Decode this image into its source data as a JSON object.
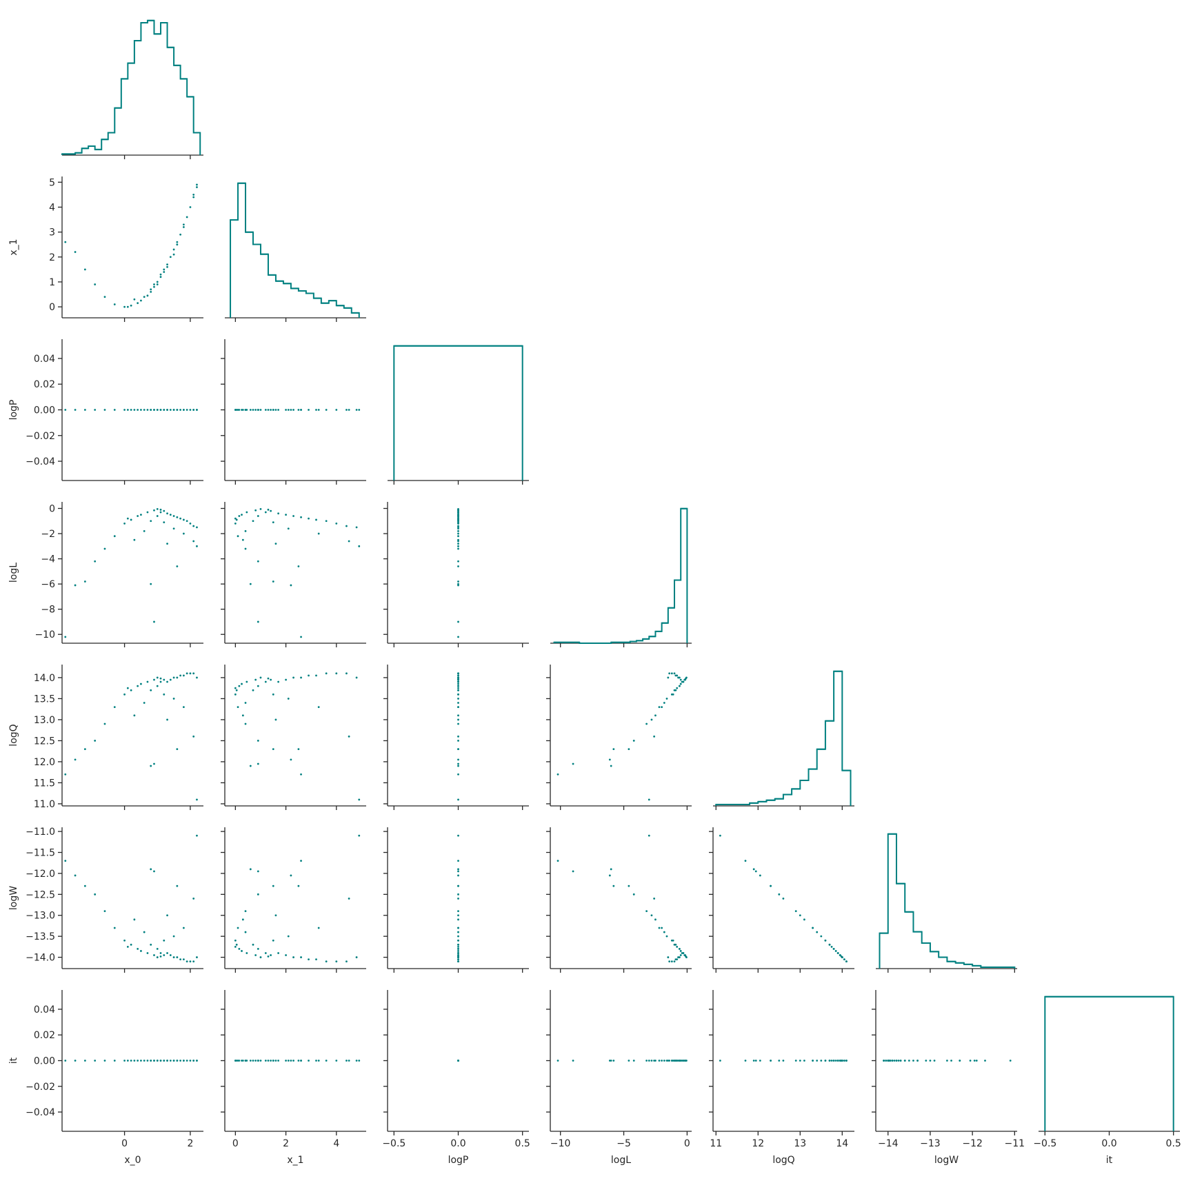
{
  "chart_data": {
    "type": "pairplot",
    "color": "#008080",
    "variables": [
      {
        "name": "x_0",
        "xlim": [
          -1.9,
          2.4
        ],
        "xticks": [
          0,
          2
        ],
        "values": [
          -1.8,
          -1.5,
          -1.2,
          -0.9,
          -0.6,
          -0.3,
          0.0,
          0.2,
          0.3,
          0.5,
          0.6,
          0.7,
          0.8,
          0.9,
          1.0,
          1.0,
          1.1,
          1.2,
          1.2,
          1.3,
          1.4,
          1.5,
          1.5,
          1.6,
          1.7,
          1.8,
          1.8,
          1.9,
          2.0,
          2.1,
          2.2,
          2.2,
          0.8,
          0.9,
          0.4,
          1.3,
          0.1,
          1.6,
          2.1,
          1.1
        ],
        "hist": {
          "bins": [
            -1.9,
            -1.7,
            -1.5,
            -1.3,
            -1.1,
            -0.9,
            -0.7,
            -0.5,
            -0.3,
            -0.1,
            0.1,
            0.3,
            0.5,
            0.7,
            0.9,
            1.1,
            1.3,
            1.5,
            1.7,
            1.9,
            2.1,
            2.3
          ],
          "counts": [
            1,
            1,
            2,
            6,
            8,
            5,
            14,
            20,
            42,
            68,
            82,
            102,
            118,
            120,
            108,
            118,
            96,
            80,
            68,
            52,
            20
          ]
        }
      },
      {
        "name": "x_1",
        "xlim": [
          -0.42,
          5.18
        ],
        "xticks": [
          0,
          2,
          4
        ],
        "ylim": [
          -0.44,
          5.23
        ],
        "yticks": [
          0,
          1,
          2,
          3,
          4,
          5
        ],
        "values": [
          2.6,
          2.2,
          1.5,
          0.9,
          0.4,
          0.1,
          0.0,
          0.05,
          0.3,
          0.25,
          0.4,
          0.45,
          0.7,
          0.8,
          1.0,
          0.9,
          1.2,
          1.4,
          1.5,
          1.7,
          2.0,
          2.3,
          2.1,
          2.6,
          2.9,
          3.2,
          3.3,
          3.6,
          4.0,
          4.4,
          4.8,
          4.9,
          0.6,
          0.9,
          0.15,
          1.6,
          0.0,
          2.5,
          4.5,
          1.3
        ],
        "hist": {
          "bins": [
            -0.2,
            0.1,
            0.4,
            0.7,
            1.0,
            1.3,
            1.6,
            1.9,
            2.2,
            2.5,
            2.8,
            3.1,
            3.4,
            3.7,
            4.0,
            4.3,
            4.6,
            4.9
          ],
          "counts": [
            80,
            110,
            70,
            60,
            52,
            35,
            30,
            28,
            24,
            22,
            20,
            16,
            12,
            14,
            10,
            8,
            4
          ]
        }
      },
      {
        "name": "logP",
        "xlim": [
          -0.55,
          0.55
        ],
        "xticks": [
          {
            "value": -0.5,
            "label": "−0.5"
          },
          {
            "value": 0,
            "label": "0.0"
          },
          0.5
        ],
        "ylim": [
          -0.055,
          0.055
        ],
        "yticks": [
          {
            "value": -0.04,
            "label": "−0.04"
          },
          {
            "value": -0.02,
            "label": "−0.02"
          },
          {
            "value": 0,
            "label": "0.00"
          },
          0.02,
          0.04
        ],
        "values": [
          0,
          0,
          0,
          0,
          0,
          0,
          0,
          0,
          0,
          0,
          0,
          0,
          0,
          0,
          0,
          0,
          0,
          0,
          0,
          0,
          0,
          0,
          0,
          0,
          0,
          0,
          0,
          0,
          0,
          0,
          0,
          0,
          0,
          0,
          0,
          0,
          0,
          0,
          0,
          0
        ],
        "hist": {
          "bins": [
            -0.5,
            0.5
          ],
          "counts": [
            40
          ]
        }
      },
      {
        "name": "logL",
        "xlim": [
          -10.8,
          0.36
        ],
        "xticks": [
          {
            "value": -10,
            "label": "−10"
          },
          {
            "value": -5,
            "label": "−5"
          },
          0
        ],
        "ylim": [
          -10.7,
          0.52
        ],
        "yticks": [
          {
            "value": -10,
            "label": "−10"
          },
          {
            "value": -8,
            "label": "−8"
          },
          {
            "value": -6,
            "label": "−6"
          },
          {
            "value": -4,
            "label": "−4"
          },
          {
            "value": -2,
            "label": "−2"
          },
          0
        ],
        "values": [
          -10.2,
          -6.1,
          -5.8,
          -4.2,
          -3.2,
          -2.2,
          -1.2,
          -0.9,
          -2.5,
          -0.5,
          -1.8,
          -0.3,
          -1.0,
          -0.15,
          -0.05,
          -0.6,
          -0.3,
          -0.2,
          -1.1,
          -0.4,
          -0.5,
          -0.6,
          -1.6,
          -0.7,
          -0.8,
          -0.9,
          -2.0,
          -1.0,
          -1.2,
          -1.4,
          -1.5,
          -3.0,
          -6.0,
          -9.0,
          -0.6,
          -2.8,
          -0.8,
          -4.6,
          -2.6,
          -0.1
        ],
        "hist": {
          "bins": [
            -10.5,
            -10,
            -9.5,
            -9,
            -8.5,
            -8,
            -7.5,
            -7,
            -6.5,
            -6,
            -5.5,
            -5,
            -4.5,
            -4,
            -3.5,
            -3,
            -2.5,
            -2,
            -1.5,
            -1,
            -0.5,
            0
          ],
          "counts": [
            1,
            1,
            1,
            1,
            0,
            0,
            0,
            0,
            0,
            1,
            1,
            1,
            2,
            3,
            5,
            8,
            14,
            24,
            42,
            75,
            160
          ]
        }
      },
      {
        "name": "logQ",
        "xlim": [
          10.93,
          14.29
        ],
        "xticks": [
          11,
          12,
          13,
          14
        ],
        "ylim": [
          10.95,
          14.31
        ],
        "yticks": [
          {
            "value": 11,
            "label": "11.0"
          },
          11.5,
          {
            "value": 12,
            "label": "12.0"
          },
          12.5,
          {
            "value": 13,
            "label": "13.0"
          },
          13.5,
          {
            "value": 14,
            "label": "14.0"
          }
        ],
        "values": [
          11.7,
          12.05,
          12.3,
          12.5,
          12.9,
          13.3,
          13.6,
          13.7,
          13.1,
          13.85,
          13.4,
          13.9,
          13.7,
          13.95,
          14.0,
          13.8,
          13.9,
          13.95,
          13.6,
          13.9,
          13.95,
          14.0,
          13.5,
          14.0,
          14.05,
          14.05,
          13.3,
          14.1,
          14.1,
          14.1,
          14.0,
          11.1,
          11.9,
          11.95,
          13.8,
          13.0,
          13.75,
          12.3,
          12.6,
          13.98
        ],
        "hist": {
          "bins": [
            11.0,
            11.2,
            11.4,
            11.6,
            11.8,
            12.0,
            12.2,
            12.4,
            12.6,
            12.8,
            13.0,
            13.2,
            13.4,
            13.6,
            13.8,
            14.0,
            14.2
          ],
          "counts": [
            1,
            1,
            1,
            1,
            2,
            3,
            4,
            5,
            8,
            12,
            18,
            26,
            40,
            60,
            95,
            25
          ]
        }
      },
      {
        "name": "logW",
        "xlim": [
          -14.29,
          -10.94
        ],
        "xticks": [
          {
            "value": -14,
            "label": "−14"
          },
          {
            "value": -13,
            "label": "−13"
          },
          {
            "value": -12,
            "label": "−12"
          },
          {
            "value": -11,
            "label": "−11"
          }
        ],
        "ylim": [
          -14.27,
          -10.9
        ],
        "yticks": [
          {
            "value": -14,
            "label": "−14.0"
          },
          {
            "value": -13.5,
            "label": "−13.5"
          },
          {
            "value": -13,
            "label": "−13.0"
          },
          {
            "value": -12.5,
            "label": "−12.5"
          },
          {
            "value": -12,
            "label": "−12.0"
          },
          {
            "value": -11.5,
            "label": "−11.5"
          },
          {
            "value": -11,
            "label": "−11.0"
          }
        ],
        "values": [
          -11.7,
          -12.05,
          -12.3,
          -12.5,
          -12.9,
          -13.3,
          -13.6,
          -13.7,
          -13.1,
          -13.85,
          -13.4,
          -13.9,
          -13.7,
          -13.95,
          -14.0,
          -13.8,
          -13.9,
          -13.95,
          -13.6,
          -13.9,
          -13.95,
          -14.0,
          -13.5,
          -14.0,
          -14.05,
          -14.05,
          -13.3,
          -14.1,
          -14.1,
          -14.1,
          -14.0,
          -11.1,
          -11.9,
          -11.95,
          -13.8,
          -13.0,
          -13.75,
          -12.3,
          -12.6,
          -13.98
        ],
        "hist": {
          "bins": [
            -14.2,
            -14.0,
            -13.8,
            -13.6,
            -13.4,
            -13.2,
            -13.0,
            -12.8,
            -12.6,
            -12.4,
            -12.2,
            -12.0,
            -11.8,
            -11.6,
            -11.4,
            -11.2,
            -11.0
          ],
          "counts": [
            25,
            95,
            60,
            40,
            26,
            18,
            12,
            8,
            5,
            4,
            3,
            2,
            1,
            1,
            1,
            1
          ]
        }
      },
      {
        "name": "it",
        "xlim": [
          -0.55,
          0.55
        ],
        "xticks": [
          {
            "value": -0.5,
            "label": "−0.5"
          },
          {
            "value": 0,
            "label": "0.0"
          },
          0.5
        ],
        "ylim": [
          -0.055,
          0.055
        ],
        "yticks": [
          {
            "value": -0.04,
            "label": "−0.04"
          },
          {
            "value": -0.02,
            "label": "−0.02"
          },
          {
            "value": 0,
            "label": "0.00"
          },
          0.02,
          0.04
        ],
        "values": [
          0,
          0,
          0,
          0,
          0,
          0,
          0,
          0,
          0,
          0,
          0,
          0,
          0,
          0,
          0,
          0,
          0,
          0,
          0,
          0,
          0,
          0,
          0,
          0,
          0,
          0,
          0,
          0,
          0,
          0,
          0,
          0,
          0,
          0,
          0,
          0,
          0,
          0,
          0,
          0
        ],
        "hist": {
          "bins": [
            -0.5,
            0.5
          ],
          "counts": [
            40
          ]
        }
      }
    ]
  }
}
